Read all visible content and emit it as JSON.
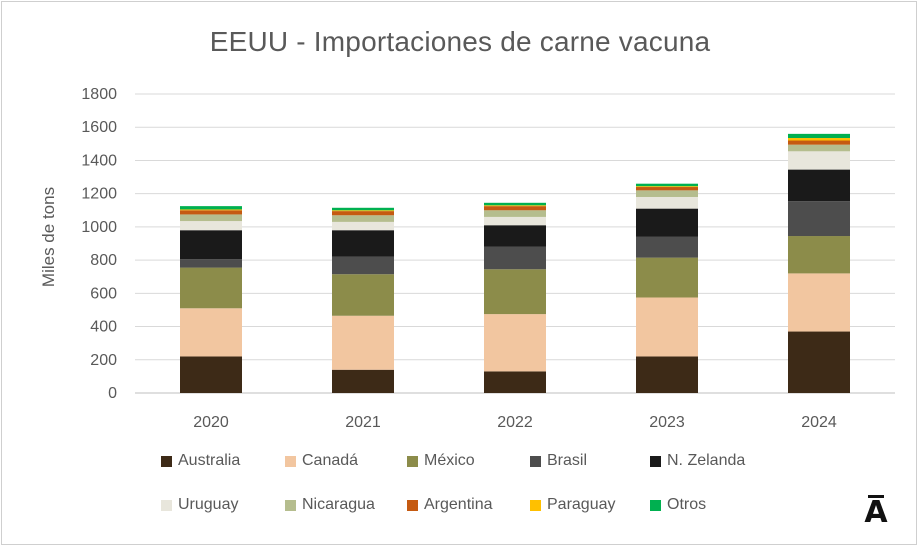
{
  "chart_data": {
    "type": "bar",
    "stacked": true,
    "title": "EEUU - Importaciones de carne vacuna",
    "ylabel": "Miles de tons",
    "xlabel": "",
    "ylim": [
      0,
      1800
    ],
    "yticks": [
      0,
      200,
      400,
      600,
      800,
      1000,
      1200,
      1400,
      1600,
      1800
    ],
    "grid": true,
    "legend_position": "bottom",
    "categories": [
      "2020",
      "2021",
      "2022",
      "2023",
      "2024"
    ],
    "series": [
      {
        "name": "Australia",
        "color": "#3d2a17",
        "values": [
          220,
          140,
          130,
          220,
          370
        ]
      },
      {
        "name": "Canadá",
        "color": "#f2c6a0",
        "values": [
          290,
          325,
          345,
          355,
          350
        ]
      },
      {
        "name": "México",
        "color": "#8c8c4a",
        "values": [
          245,
          250,
          270,
          240,
          225
        ]
      },
      {
        "name": "Brasil",
        "color": "#4d4d4d",
        "values": [
          50,
          105,
          135,
          125,
          210
        ]
      },
      {
        "name": "N. Zelanda",
        "color": "#1a1a1a",
        "values": [
          175,
          160,
          130,
          170,
          190
        ]
      },
      {
        "name": "Uruguay",
        "color": "#e8e6dc",
        "values": [
          55,
          50,
          50,
          70,
          110
        ]
      },
      {
        "name": "Nicaragua",
        "color": "#b5bd8e",
        "values": [
          40,
          40,
          40,
          40,
          40
        ]
      },
      {
        "name": "Argentina",
        "color": "#c55a11",
        "values": [
          25,
          25,
          25,
          20,
          25
        ]
      },
      {
        "name": "Paraguay",
        "color": "#ffc000",
        "values": [
          5,
          5,
          5,
          5,
          15
        ]
      },
      {
        "name": "Otros",
        "color": "#00b050",
        "values": [
          20,
          15,
          15,
          15,
          25
        ]
      }
    ]
  },
  "legend": {
    "row1": [
      "Australia",
      "Canadá",
      "México",
      "Brasil",
      "N. Zelanda"
    ],
    "row2": [
      "Uruguay",
      "Nicaragua",
      "Argentina",
      "Paraguay",
      "Otros"
    ]
  },
  "logo": {
    "icon": "a-macron-logo",
    "text": "Ā"
  }
}
